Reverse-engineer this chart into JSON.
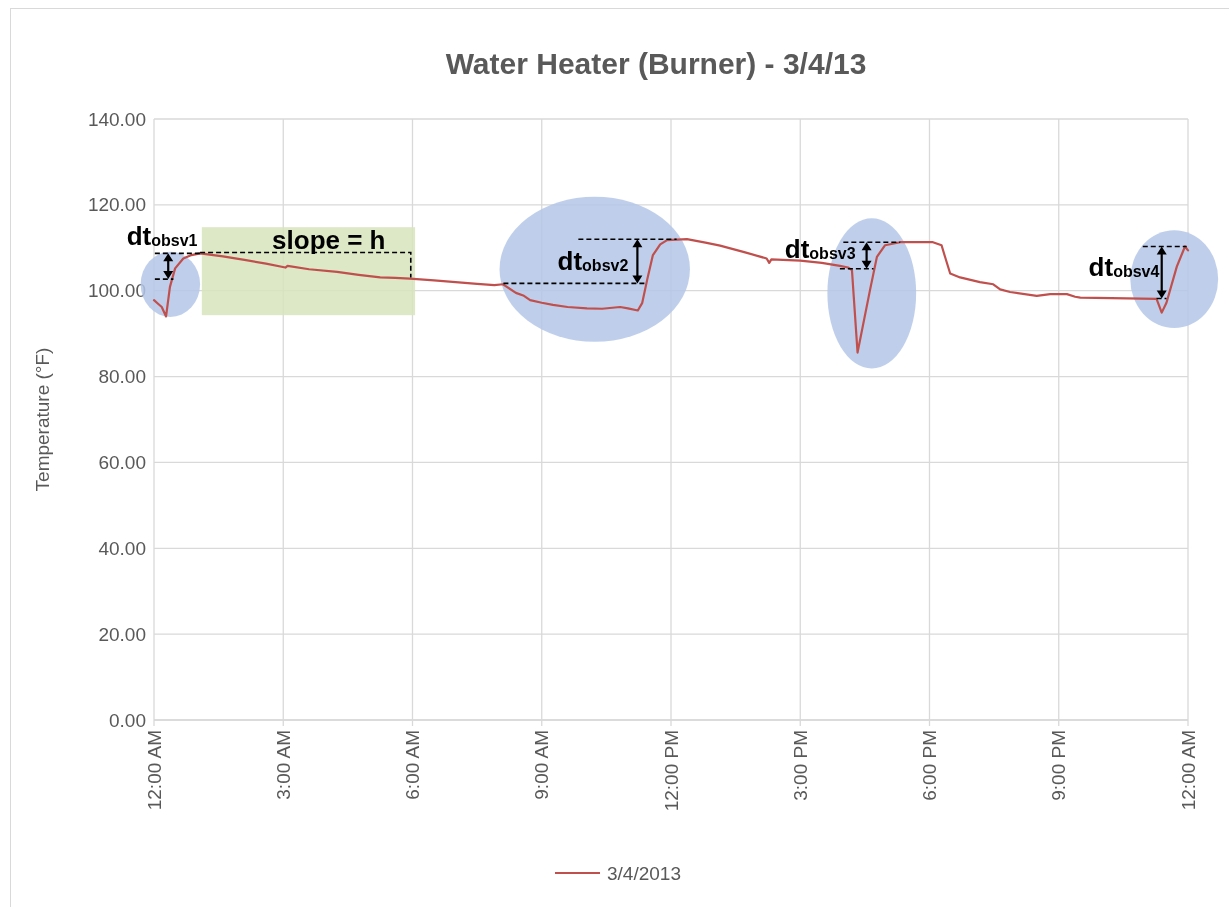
{
  "chart_data": {
    "type": "line",
    "title": "Water Heater (Burner) - 3/4/13",
    "ylabel": "Temperature (°F)",
    "x": [
      0,
      0.1,
      0.18,
      0.28,
      0.37,
      0.49,
      0.68,
      0.87,
      1.07,
      1.6,
      2.1,
      2.6,
      3.05,
      3.1,
      3.6,
      4.25,
      4.75,
      5.25,
      5.6,
      5.94,
      6.5,
      7,
      7.5,
      7.9,
      8.1,
      8.19,
      8.4,
      8.57,
      8.73,
      9,
      9.26,
      9.6,
      10.05,
      10.4,
      10.82,
      11,
      11.23,
      11.33,
      11.45,
      11.58,
      11.75,
      11.91,
      12.37,
      12.8,
      13.14,
      13.7,
      14.22,
      14.28,
      14.33,
      15,
      15.5,
      15.92,
      16.11,
      16.2,
      16.33,
      16.62,
      16.78,
      16.97,
      17.32,
      18.08,
      18.28,
      18.36,
      18.48,
      18.71,
      19.17,
      19.48,
      19.64,
      19.87,
      20.49,
      20.8,
      21.19,
      21.38,
      21.5,
      22.58,
      23.27,
      23.39,
      23.5,
      23.74,
      23.93,
      24
    ],
    "series": [
      {
        "name": "3/4/2013",
        "color": "#c0504d",
        "values": [
          97.8,
          96.9,
          96.2,
          94,
          100.9,
          105.2,
          107.5,
          108.3,
          108.7,
          108,
          107.2,
          106.3,
          105.4,
          105.8,
          105,
          104.4,
          103.7,
          103.1,
          103,
          102.8,
          102.4,
          102,
          101.6,
          101.3,
          101.5,
          100.9,
          99.5,
          98.9,
          97.8,
          97.2,
          96.7,
          96.2,
          95.9,
          95.8,
          96.2,
          95.9,
          95.4,
          97.1,
          102.7,
          108.3,
          110.8,
          111.8,
          112,
          111.2,
          110.5,
          109,
          107.5,
          106.5,
          107.3,
          107,
          106.5,
          105.8,
          105.4,
          104.8,
          85.6,
          100.2,
          107.9,
          110.6,
          111.3,
          111.3,
          110.6,
          107.9,
          104,
          103.1,
          102,
          101.5,
          100.3,
          99.7,
          98.8,
          99.2,
          99.2,
          98.6,
          98.4,
          98.2,
          98.1,
          94.9,
          97.2,
          105.6,
          110.3,
          109.4
        ]
      }
    ],
    "xlim": [
      0,
      24
    ],
    "xticks": [
      {
        "value": 0,
        "label": "12:00 AM"
      },
      {
        "value": 3,
        "label": "3:00 AM"
      },
      {
        "value": 6,
        "label": "6:00 AM"
      },
      {
        "value": 9,
        "label": "9:00 AM"
      },
      {
        "value": 12,
        "label": "12:00 PM"
      },
      {
        "value": 15,
        "label": "3:00 PM"
      },
      {
        "value": 18,
        "label": "6:00 PM"
      },
      {
        "value": 21,
        "label": "9:00 PM"
      },
      {
        "value": 24,
        "label": "12:00 AM"
      }
    ],
    "ylim": [
      0,
      140
    ],
    "yticks": [
      {
        "value": 0,
        "label": "0.00"
      },
      {
        "value": 20,
        "label": "20.00"
      },
      {
        "value": 40,
        "label": "40.00"
      },
      {
        "value": 60,
        "label": "60.00"
      },
      {
        "value": 80,
        "label": "80.00"
      },
      {
        "value": 100,
        "label": "100.00"
      },
      {
        "value": 120,
        "label": "120.00"
      },
      {
        "value": 140,
        "label": "140.00"
      }
    ],
    "grid": true,
    "legend": "bottom",
    "annotations": [
      {
        "text": "dt$_{obsv1}$",
        "x": 1.07,
        "y": 108.7
      },
      {
        "text": "slope = h",
        "x": 3.5,
        "y": 105.2
      },
      {
        "text": "dt$_{obsv2}$",
        "x": 12.37,
        "y": 112
      },
      {
        "text": "dt$_{obsv3}$",
        "x": 17.32,
        "y": 111.3
      },
      {
        "text": "dt$_{obsv4}$",
        "x": 23.93,
        "y": 110.3
      }
    ]
  }
}
